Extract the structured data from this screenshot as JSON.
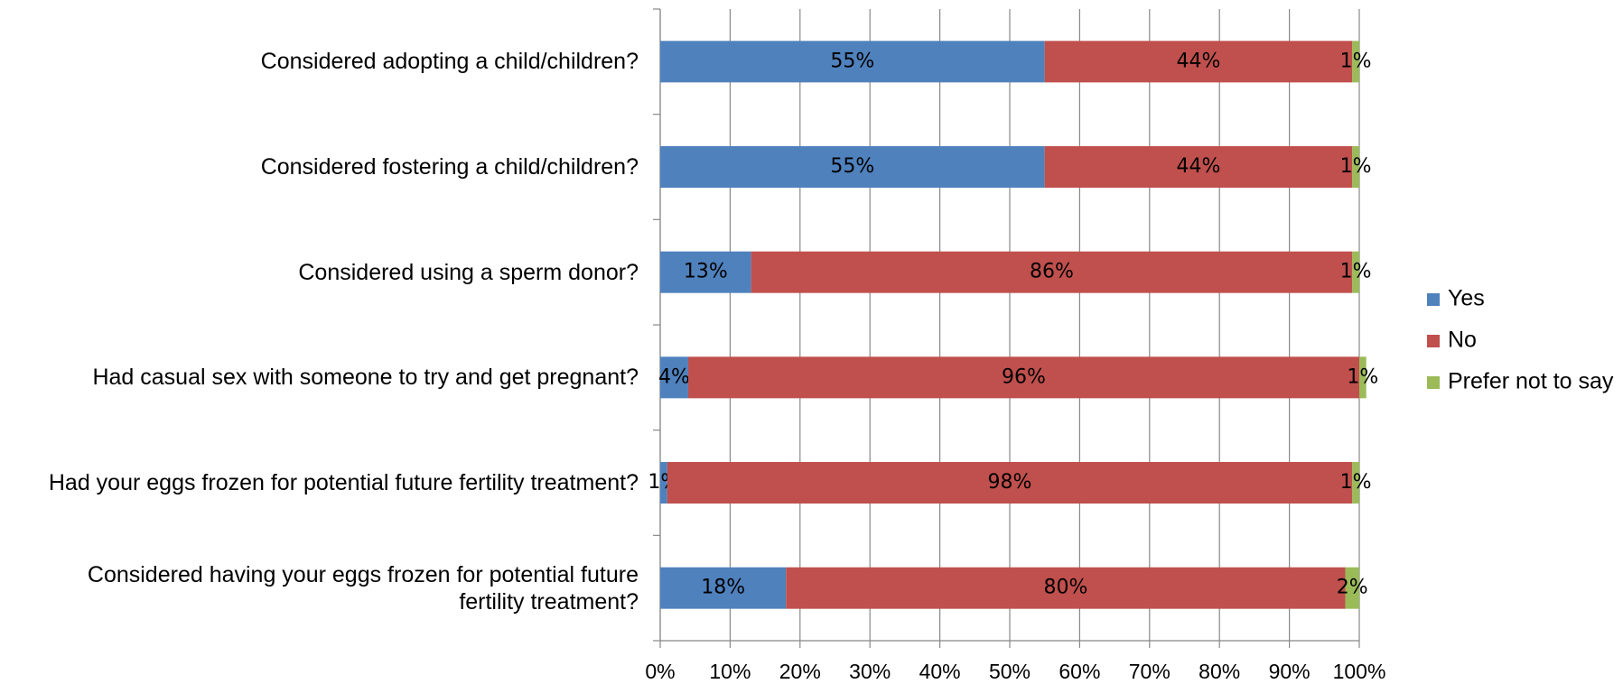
{
  "chart_data": {
    "type": "stacked-barh",
    "categories": [
      "Considered adopting a child/children?",
      "Considered fostering a child/children?",
      "Considered using a sperm donor?",
      "Had casual sex with someone to try and get pregnant?",
      "Had your eggs frozen for potential future fertility treatment?",
      "Considered having your eggs frozen for potential future\nfertility treatment?"
    ],
    "series": [
      {
        "name": "Yes",
        "color": "#4f81bd",
        "values": [
          55,
          55,
          13,
          4,
          1,
          18
        ],
        "value_labels": [
          "55%",
          "55%",
          "13%",
          "4%",
          "1%",
          "18%"
        ]
      },
      {
        "name": "No",
        "color": "#c0504d",
        "values": [
          44,
          44,
          86,
          96,
          98,
          80
        ],
        "value_labels": [
          "44%",
          "44%",
          "86%",
          "96%",
          "98%",
          "80%"
        ]
      },
      {
        "name": "Prefer not to say",
        "color": "#9bbb59",
        "values": [
          1,
          1,
          1,
          1,
          1,
          2
        ],
        "value_labels": [
          "1%",
          "1%",
          "1%",
          "1%",
          "1%",
          "2%"
        ]
      }
    ],
    "xlim": [
      0,
      100
    ],
    "xticks": [
      {
        "value": 0,
        "label": "0%"
      },
      {
        "value": 10,
        "label": "10%"
      },
      {
        "value": 20,
        "label": "20%"
      },
      {
        "value": 30,
        "label": "30%"
      },
      {
        "value": 40,
        "label": "40%"
      },
      {
        "value": 50,
        "label": "50%"
      },
      {
        "value": 60,
        "label": "60%"
      },
      {
        "value": 70,
        "label": "70%"
      },
      {
        "value": 80,
        "label": "80%"
      },
      {
        "value": 90,
        "label": "90%"
      },
      {
        "value": 100,
        "label": "100%"
      }
    ],
    "grid": true,
    "legend": "right"
  }
}
